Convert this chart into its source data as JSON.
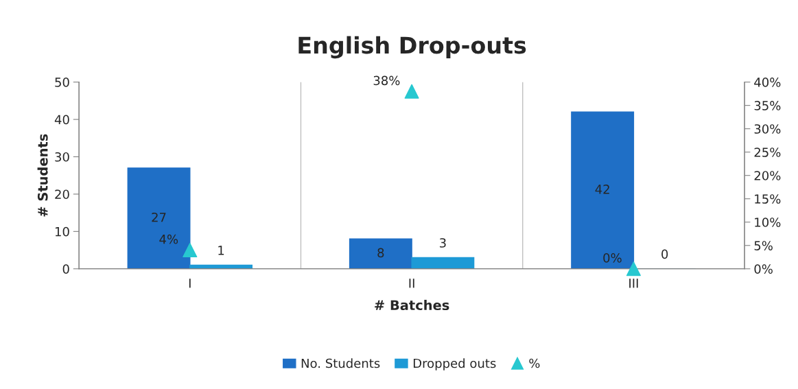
{
  "chart_data": {
    "type": "bar",
    "title": "English Drop-outs",
    "xlabel": "# Batches",
    "ylabel": "# Students",
    "categories": [
      "I",
      "II",
      "III"
    ],
    "series": [
      {
        "name": "No. Students",
        "color": "#1f6fc6",
        "values": [
          27,
          8,
          42
        ],
        "value_labels": [
          "27",
          "8",
          "42"
        ]
      },
      {
        "name": "Dropped outs",
        "color": "#1e9ad6",
        "values": [
          1,
          3,
          0
        ],
        "value_labels": [
          "1",
          "3",
          "0"
        ]
      },
      {
        "name": "%",
        "type": "scatter",
        "axis": "y2",
        "marker": "triangle",
        "color": "#27c8d0",
        "values": [
          4,
          38,
          0
        ],
        "value_labels": [
          "4%",
          "38%",
          "0%"
        ]
      }
    ],
    "ylim": [
      0,
      50
    ],
    "yticks": [
      0,
      10,
      20,
      30,
      40,
      50
    ],
    "y2lim": [
      0,
      40
    ],
    "y2ticks": [
      {
        "value": 0,
        "label": "0%"
      },
      {
        "value": 5,
        "label": "5%"
      },
      {
        "value": 10,
        "label": "10%"
      },
      {
        "value": 15,
        "label": "15%"
      },
      {
        "value": 20,
        "label": "20%"
      },
      {
        "value": 25,
        "label": "25%"
      },
      {
        "value": 30,
        "label": "30%"
      },
      {
        "value": 35,
        "label": "35%"
      },
      {
        "value": 40,
        "label": "40%"
      }
    ],
    "grid": false,
    "legend": "bottom"
  }
}
